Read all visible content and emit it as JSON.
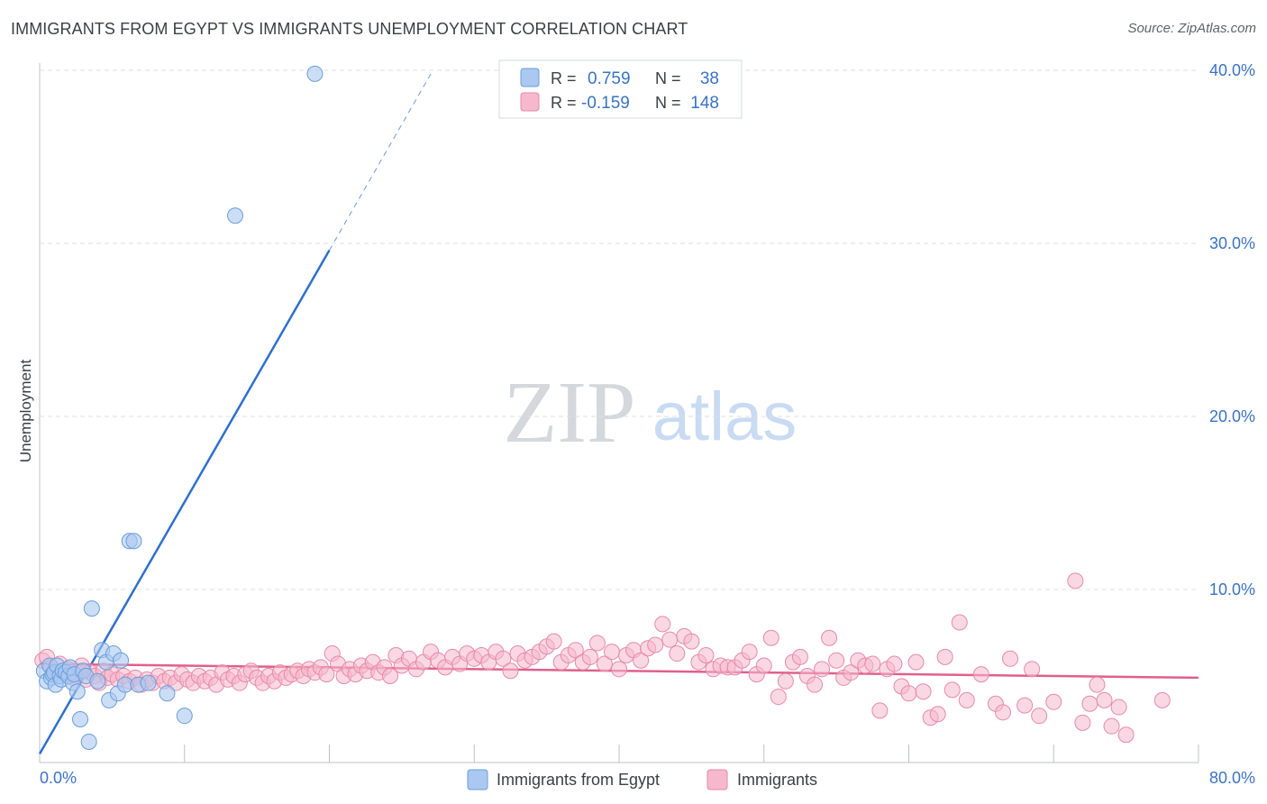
{
  "header": {
    "title": "IMMIGRANTS FROM EGYPT VS IMMIGRANTS UNEMPLOYMENT CORRELATION CHART",
    "source": "Source: ZipAtlas.com"
  },
  "watermark": {
    "part1": "ZIP",
    "part2": "atlas"
  },
  "legend_stats": {
    "r_label": "R =",
    "n_label": "N =",
    "series": [
      {
        "r": "0.759",
        "n": "38"
      },
      {
        "r": "-0.159",
        "n": "148"
      }
    ]
  },
  "colors": {
    "blue_fill": "#aac8f0",
    "blue_stroke": "#6a9edb",
    "blue_line": "#2f6fce",
    "pink_fill": "#f6b8cc",
    "pink_stroke": "#e68aa8",
    "pink_line": "#e0608a",
    "value_text": "#3a72c8",
    "grid": "#dcdfe3"
  },
  "chart_data": {
    "type": "scatter",
    "title": "IMMIGRANTS FROM EGYPT VS IMMIGRANTS UNEMPLOYMENT CORRELATION CHART",
    "xlabel": "",
    "ylabel": "Unemployment",
    "xlim": [
      0,
      80
    ],
    "ylim": [
      0,
      40
    ],
    "x_tick_labels": [
      "0.0%",
      "80.0%"
    ],
    "y_ticks": [
      10,
      20,
      30,
      40
    ],
    "y_tick_labels": [
      "10.0%",
      "20.0%",
      "30.0%",
      "40.0%"
    ],
    "grid": true,
    "legend": [
      "Immigrants from Egypt",
      "Immigrants"
    ],
    "series": [
      {
        "name": "Immigrants from Egypt",
        "r": 0.759,
        "n": 38,
        "trend": {
          "x0": 0,
          "y0": 0.5,
          "x1": 20,
          "y1": 29.6,
          "dash_x_end": 27
        },
        "points": [
          [
            0.3,
            5.3
          ],
          [
            0.5,
            4.7
          ],
          [
            0.7,
            5.6
          ],
          [
            0.8,
            4.9
          ],
          [
            0.9,
            5.1
          ],
          [
            1.0,
            5.2
          ],
          [
            1.1,
            4.5
          ],
          [
            1.2,
            5.6
          ],
          [
            1.4,
            5.0
          ],
          [
            1.5,
            4.8
          ],
          [
            1.6,
            5.3
          ],
          [
            1.8,
            5.2
          ],
          [
            2.0,
            5.0
          ],
          [
            2.1,
            5.5
          ],
          [
            2.3,
            4.6
          ],
          [
            2.4,
            5.1
          ],
          [
            2.6,
            4.1
          ],
          [
            2.8,
            2.5
          ],
          [
            3.0,
            5.3
          ],
          [
            3.2,
            5.0
          ],
          [
            3.4,
            1.2
          ],
          [
            3.6,
            8.9
          ],
          [
            4.0,
            4.7
          ],
          [
            4.3,
            6.5
          ],
          [
            4.6,
            5.8
          ],
          [
            4.8,
            3.6
          ],
          [
            5.1,
            6.3
          ],
          [
            5.4,
            4.0
          ],
          [
            5.6,
            5.9
          ],
          [
            5.9,
            4.5
          ],
          [
            6.2,
            12.8
          ],
          [
            6.5,
            12.8
          ],
          [
            6.8,
            4.5
          ],
          [
            7.5,
            4.6
          ],
          [
            8.8,
            4.0
          ],
          [
            10.0,
            2.7
          ],
          [
            13.5,
            31.6
          ],
          [
            19.0,
            39.8
          ]
        ]
      },
      {
        "name": "Immigrants",
        "r": -0.159,
        "n": 148,
        "trend": {
          "x0": 0,
          "y0": 5.7,
          "x1": 80,
          "y1": 4.9
        },
        "points": [
          [
            0.2,
            5.9
          ],
          [
            0.5,
            6.1
          ],
          [
            0.8,
            5.5
          ],
          [
            1.1,
            5.3
          ],
          [
            1.4,
            5.7
          ],
          [
            1.7,
            5.1
          ],
          [
            2.0,
            5.4
          ],
          [
            2.3,
            4.9
          ],
          [
            2.6,
            5.2
          ],
          [
            2.9,
            5.6
          ],
          [
            3.2,
            4.8
          ],
          [
            3.5,
            5.2
          ],
          [
            3.8,
            5.0
          ],
          [
            4.1,
            4.6
          ],
          [
            4.4,
            5.3
          ],
          [
            4.7,
            4.9
          ],
          [
            5.0,
            5.1
          ],
          [
            5.4,
            4.8
          ],
          [
            5.8,
            5.0
          ],
          [
            6.2,
            4.7
          ],
          [
            6.6,
            4.9
          ],
          [
            7.0,
            4.5
          ],
          [
            7.4,
            4.8
          ],
          [
            7.8,
            4.6
          ],
          [
            8.2,
            5.0
          ],
          [
            8.6,
            4.7
          ],
          [
            9.0,
            4.9
          ],
          [
            9.4,
            4.6
          ],
          [
            9.8,
            5.1
          ],
          [
            10.2,
            4.8
          ],
          [
            10.6,
            4.6
          ],
          [
            11.0,
            5.0
          ],
          [
            11.4,
            4.7
          ],
          [
            11.8,
            4.9
          ],
          [
            12.2,
            4.5
          ],
          [
            12.6,
            5.2
          ],
          [
            13.0,
            4.8
          ],
          [
            13.4,
            5.0
          ],
          [
            13.8,
            4.6
          ],
          [
            14.2,
            5.1
          ],
          [
            14.6,
            5.3
          ],
          [
            15.0,
            4.9
          ],
          [
            15.4,
            4.6
          ],
          [
            15.8,
            5.0
          ],
          [
            16.2,
            4.7
          ],
          [
            16.6,
            5.2
          ],
          [
            17.0,
            4.9
          ],
          [
            17.4,
            5.1
          ],
          [
            17.8,
            5.3
          ],
          [
            18.2,
            5.0
          ],
          [
            18.6,
            5.4
          ],
          [
            19.0,
            5.2
          ],
          [
            19.4,
            5.5
          ],
          [
            19.8,
            5.1
          ],
          [
            20.2,
            6.3
          ],
          [
            20.6,
            5.7
          ],
          [
            21.0,
            5.0
          ],
          [
            21.4,
            5.4
          ],
          [
            21.8,
            5.1
          ],
          [
            22.2,
            5.6
          ],
          [
            22.6,
            5.3
          ],
          [
            23.0,
            5.8
          ],
          [
            23.4,
            5.2
          ],
          [
            23.8,
            5.5
          ],
          [
            24.2,
            5.0
          ],
          [
            24.6,
            6.2
          ],
          [
            25.0,
            5.6
          ],
          [
            25.5,
            6.0
          ],
          [
            26.0,
            5.4
          ],
          [
            26.5,
            5.8
          ],
          [
            27.0,
            6.4
          ],
          [
            27.5,
            5.9
          ],
          [
            28.0,
            5.5
          ],
          [
            28.5,
            6.1
          ],
          [
            29.0,
            5.7
          ],
          [
            29.5,
            6.3
          ],
          [
            30.0,
            6.0
          ],
          [
            30.5,
            6.2
          ],
          [
            31.0,
            5.8
          ],
          [
            31.5,
            6.4
          ],
          [
            32.0,
            6.0
          ],
          [
            32.5,
            5.3
          ],
          [
            33.0,
            6.3
          ],
          [
            33.5,
            5.9
          ],
          [
            34.0,
            6.1
          ],
          [
            34.5,
            6.4
          ],
          [
            35.0,
            6.7
          ],
          [
            35.5,
            7.0
          ],
          [
            36.0,
            5.8
          ],
          [
            36.5,
            6.2
          ],
          [
            37.0,
            6.5
          ],
          [
            37.5,
            5.8
          ],
          [
            38.0,
            6.1
          ],
          [
            38.5,
            6.9
          ],
          [
            39.0,
            5.7
          ],
          [
            39.5,
            6.4
          ],
          [
            40.0,
            5.4
          ],
          [
            40.5,
            6.2
          ],
          [
            41.0,
            6.5
          ],
          [
            41.5,
            5.9
          ],
          [
            42.0,
            6.6
          ],
          [
            42.5,
            6.8
          ],
          [
            43.0,
            8.0
          ],
          [
            43.5,
            7.1
          ],
          [
            44.0,
            6.3
          ],
          [
            44.5,
            7.3
          ],
          [
            45.0,
            7.0
          ],
          [
            45.5,
            5.8
          ],
          [
            46.0,
            6.2
          ],
          [
            46.5,
            5.4
          ],
          [
            47.0,
            5.6
          ],
          [
            47.5,
            5.5
          ],
          [
            48.0,
            5.5
          ],
          [
            48.5,
            5.9
          ],
          [
            49.0,
            6.4
          ],
          [
            49.5,
            5.1
          ],
          [
            50.0,
            5.6
          ],
          [
            50.5,
            7.2
          ],
          [
            51.0,
            3.8
          ],
          [
            51.5,
            4.7
          ],
          [
            52.0,
            5.8
          ],
          [
            52.5,
            6.1
          ],
          [
            53.0,
            5.0
          ],
          [
            53.5,
            4.5
          ],
          [
            54.0,
            5.4
          ],
          [
            54.5,
            7.2
          ],
          [
            55.0,
            5.9
          ],
          [
            55.5,
            4.9
          ],
          [
            56.0,
            5.2
          ],
          [
            56.5,
            5.9
          ],
          [
            57.0,
            5.6
          ],
          [
            57.5,
            5.7
          ],
          [
            58.0,
            3.0
          ],
          [
            58.5,
            5.4
          ],
          [
            59.0,
            5.7
          ],
          [
            59.5,
            4.4
          ],
          [
            60.0,
            4.0
          ],
          [
            60.5,
            5.8
          ],
          [
            61.0,
            4.1
          ],
          [
            61.5,
            2.6
          ],
          [
            62.0,
            2.8
          ],
          [
            62.5,
            6.1
          ],
          [
            63.0,
            4.2
          ],
          [
            63.5,
            8.1
          ],
          [
            64.0,
            3.6
          ],
          [
            65.0,
            5.1
          ],
          [
            66.0,
            3.4
          ],
          [
            66.5,
            2.9
          ],
          [
            67.0,
            6.0
          ],
          [
            68.0,
            3.3
          ],
          [
            68.5,
            5.4
          ],
          [
            69.0,
            2.7
          ],
          [
            70.0,
            3.5
          ],
          [
            71.5,
            10.5
          ],
          [
            72.0,
            2.3
          ],
          [
            72.5,
            3.4
          ],
          [
            73.0,
            4.5
          ],
          [
            73.5,
            3.6
          ],
          [
            74.0,
            2.1
          ],
          [
            74.5,
            3.2
          ],
          [
            75.0,
            1.6
          ],
          [
            77.5,
            3.6
          ]
        ]
      }
    ]
  }
}
